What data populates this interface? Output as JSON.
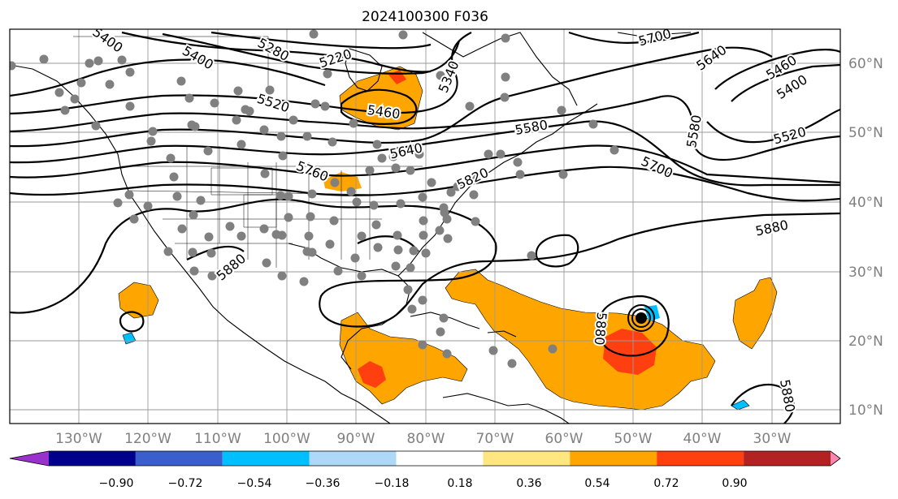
{
  "title": "2024100300 F036",
  "map": {
    "lat_labels": [
      "60°N",
      "50°N",
      "40°N",
      "30°N",
      "20°N",
      "10°N"
    ],
    "lon_labels": [
      "130°W",
      "120°W",
      "110°W",
      "100°W",
      "90°W",
      "80°W",
      "70°W",
      "60°W",
      "50°W",
      "40°W",
      "30°W"
    ],
    "contour_labels": [
      "5400",
      "5400",
      "5280",
      "5220",
      "5340",
      "5460",
      "5520",
      "5580",
      "5640",
      "5760",
      "5820",
      "5700",
      "5640",
      "5460",
      "5400",
      "5580",
      "5700",
      "5520",
      "5880",
      "5880",
      "5880",
      "5880"
    ],
    "colors": {
      "contour": "#000000",
      "grid": "#9a9a9a",
      "station_dot": "#808080",
      "positive_medium": "#ffa500",
      "positive_strong": "#ff3f0f",
      "negative_light": "#00bfff"
    }
  },
  "colorbar": {
    "tick_labels": [
      "−0.90",
      "−0.72",
      "−0.54",
      "−0.36",
      "−0.18",
      "0.18",
      "0.36",
      "0.54",
      "0.72",
      "0.90"
    ],
    "colors": [
      "#9932cc",
      "#00008b",
      "#3a5fcd",
      "#00bfff",
      "#add8f7",
      "#ffffff",
      "#ffe680",
      "#ffa500",
      "#ff3f0f",
      "#b22222",
      "#ff85b0"
    ]
  }
}
